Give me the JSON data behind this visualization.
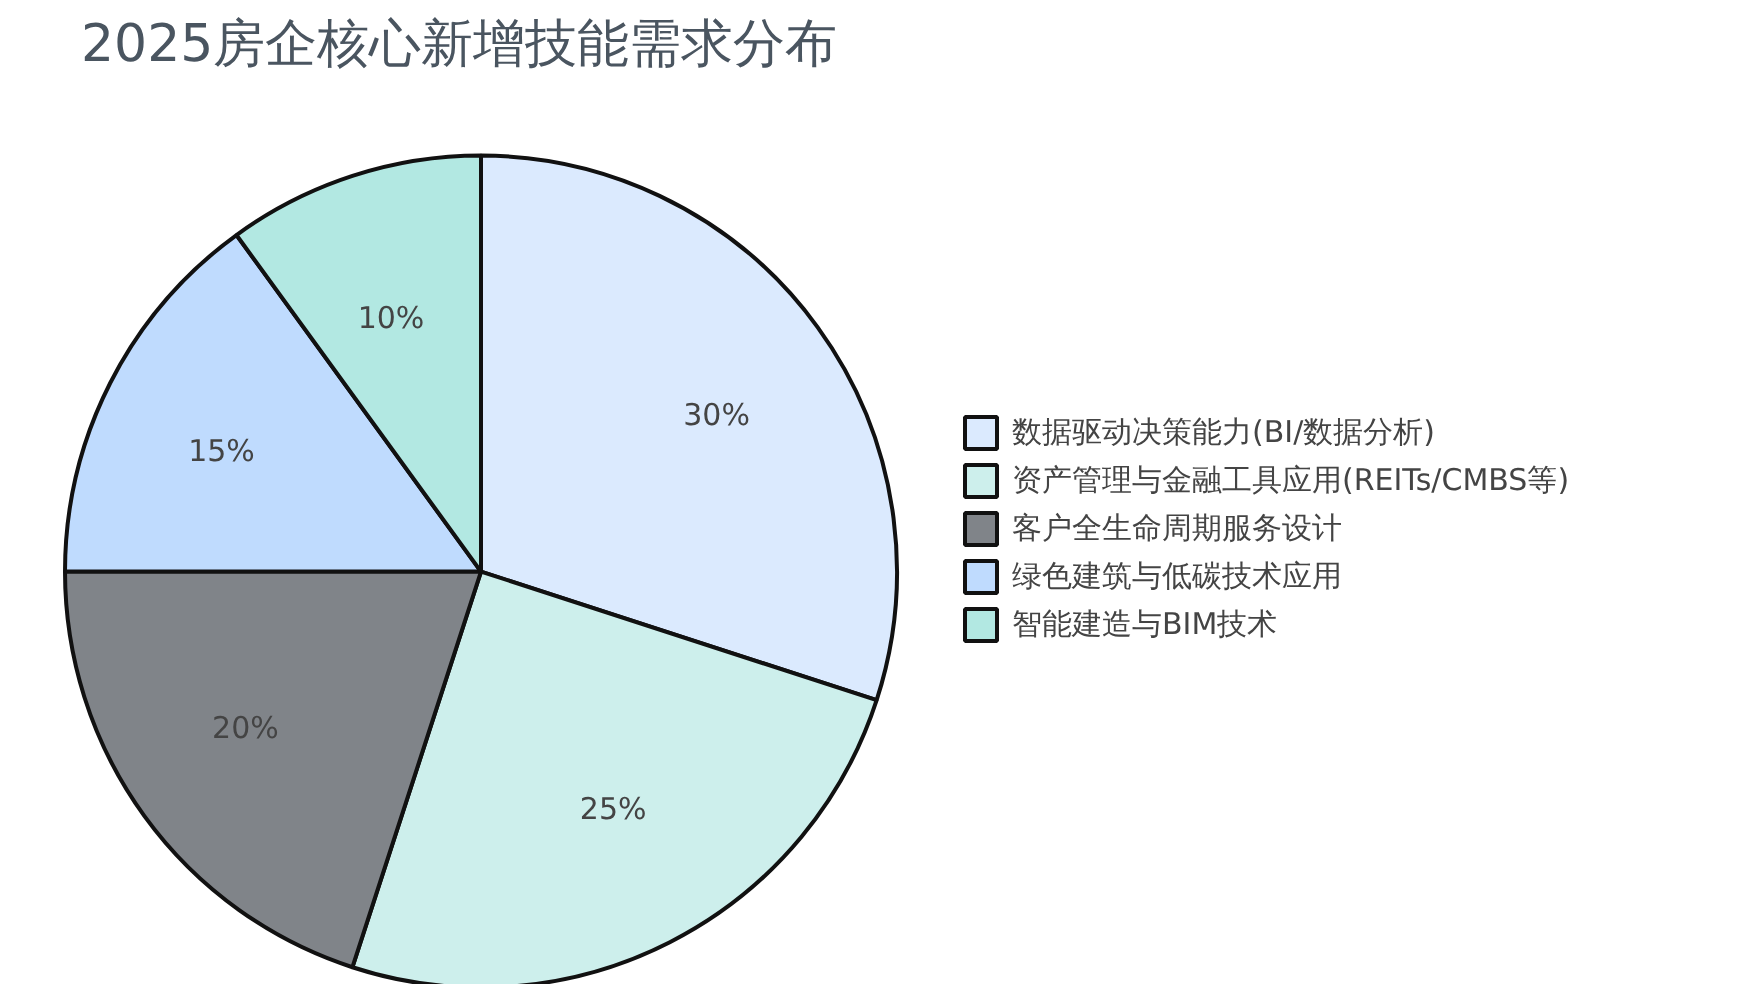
{
  "chart_data": {
    "type": "pie",
    "title": "2025房企核心新增技能需求分布",
    "categories": [
      "数据驱动决策能力(BI/数据分析)",
      "资产管理与金融工具应用(REITs/CMBS等)",
      "客户全生命周期服务设计",
      "绿色建筑与低碳技术应用",
      "智能建造与BIM技术"
    ],
    "values": [
      30,
      25,
      20,
      15,
      10
    ],
    "value_labels": [
      "30%",
      "25%",
      "20%",
      "15%",
      "10%"
    ],
    "colors": [
      "#dbeafe",
      "#cdefec",
      "#808489",
      "#bfdbfe",
      "#b2e8e2"
    ],
    "legend": "right"
  }
}
